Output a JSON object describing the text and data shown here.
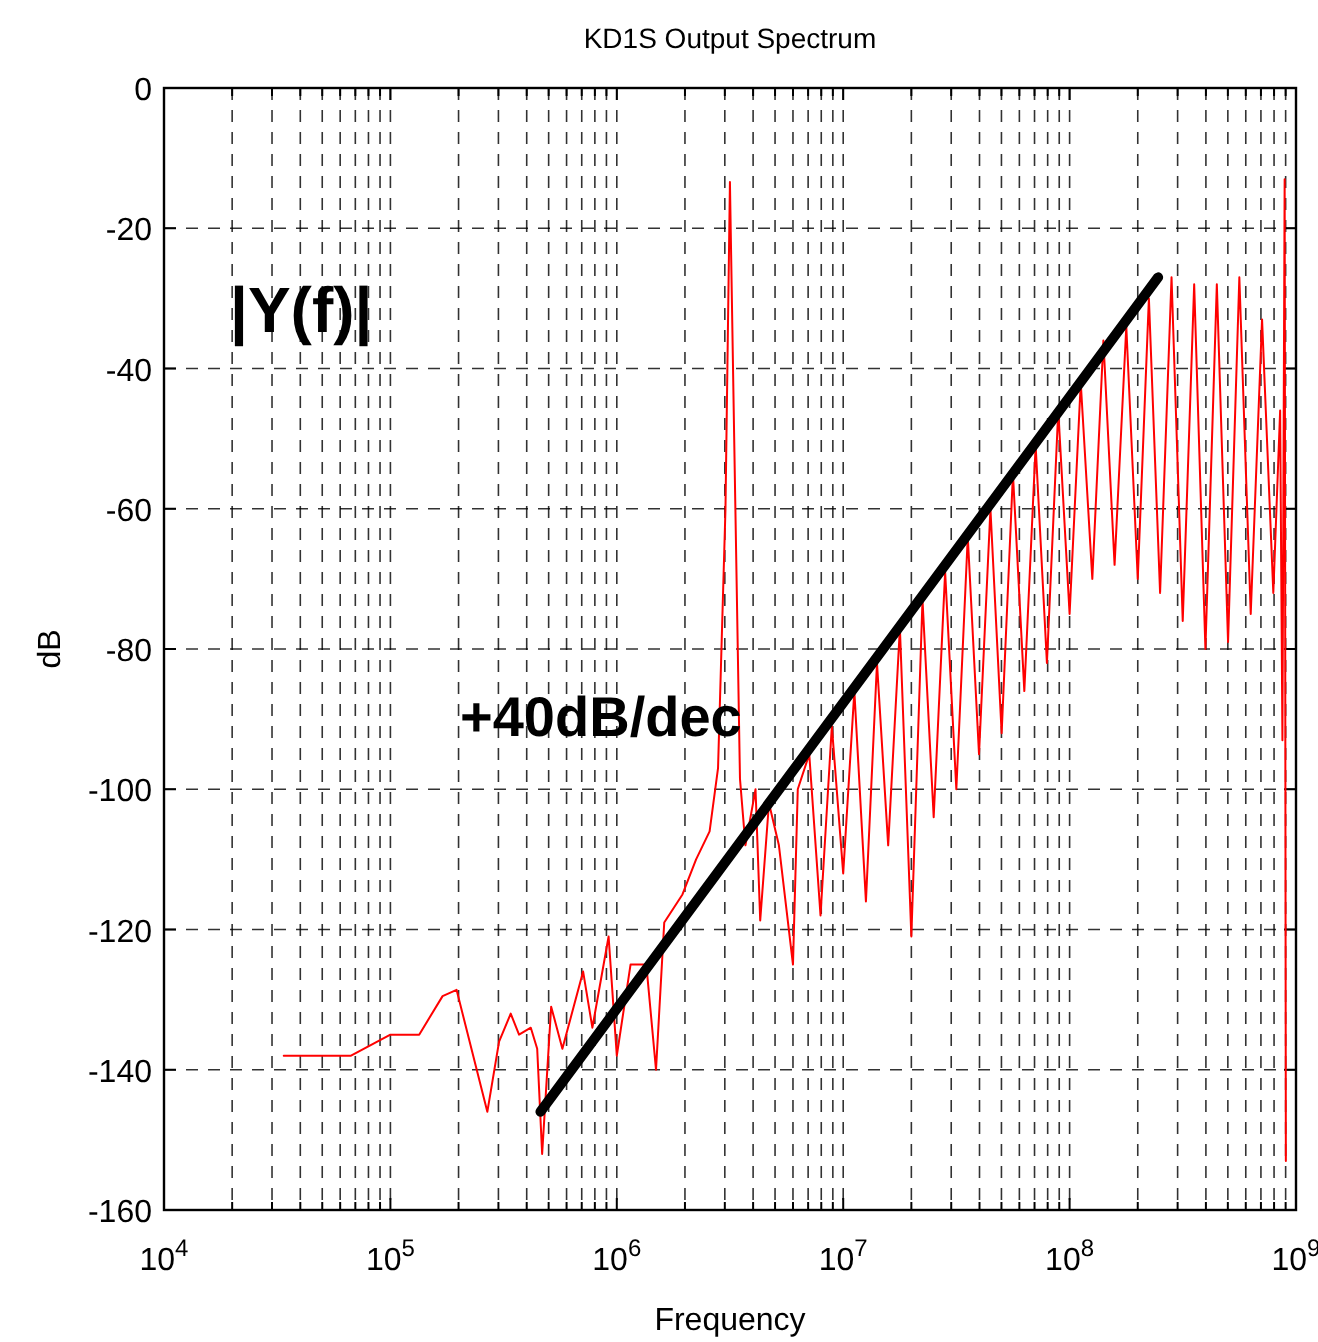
{
  "chart_data": {
    "type": "line",
    "title": "KD1S Output Spectrum",
    "xlabel": "Frequency",
    "ylabel": "dB",
    "log": "x",
    "grid": true,
    "xlim": [
      10000,
      1000000000
    ],
    "ylim": [
      -160,
      0
    ],
    "xticks": [
      {
        "value": 10000,
        "label": "10$^{4}$"
      },
      {
        "value": 20000,
        "label": null
      },
      {
        "value": 30000,
        "label": null
      },
      {
        "value": 40000,
        "label": null
      },
      {
        "value": 50000,
        "label": null
      },
      {
        "value": 60000,
        "label": null
      },
      {
        "value": 70000,
        "label": null
      },
      {
        "value": 80000,
        "label": null
      },
      {
        "value": 90000,
        "label": null
      },
      {
        "value": 100000,
        "label": "10$^{5}$"
      },
      {
        "value": 200000,
        "label": null
      },
      {
        "value": 300000,
        "label": null
      },
      {
        "value": 400000,
        "label": null
      },
      {
        "value": 500000,
        "label": null
      },
      {
        "value": 600000,
        "label": null
      },
      {
        "value": 700000,
        "label": null
      },
      {
        "value": 800000,
        "label": null
      },
      {
        "value": 900000,
        "label": null
      },
      {
        "value": 1000000,
        "label": "10$^{6}$"
      },
      {
        "value": 2000000,
        "label": null
      },
      {
        "value": 3000000,
        "label": null
      },
      {
        "value": 4000000,
        "label": null
      },
      {
        "value": 5000000,
        "label": null
      },
      {
        "value": 6000000,
        "label": null
      },
      {
        "value": 7000000,
        "label": null
      },
      {
        "value": 8000000,
        "label": null
      },
      {
        "value": 9000000,
        "label": null
      },
      {
        "value": 10000000,
        "label": "10$^{7}$"
      },
      {
        "value": 20000000,
        "label": null
      },
      {
        "value": 30000000,
        "label": null
      },
      {
        "value": 40000000,
        "label": null
      },
      {
        "value": 50000000,
        "label": null
      },
      {
        "value": 60000000,
        "label": null
      },
      {
        "value": 70000000,
        "label": null
      },
      {
        "value": 80000000,
        "label": null
      },
      {
        "value": 90000000,
        "label": null
      },
      {
        "value": 100000000,
        "label": "10$^{8}$"
      },
      {
        "value": 200000000,
        "label": null
      },
      {
        "value": 300000000,
        "label": null
      },
      {
        "value": 400000000,
        "label": null
      },
      {
        "value": 500000000,
        "label": null
      },
      {
        "value": 600000000,
        "label": null
      },
      {
        "value": 700000000,
        "label": null
      },
      {
        "value": 800000000,
        "label": null
      },
      {
        "value": 900000000,
        "label": null
      },
      {
        "value": 1000000000,
        "label": "10$^{9}$"
      }
    ],
    "yticks": [
      0,
      -20,
      -40,
      -60,
      -80,
      -100,
      -120,
      -140,
      -160
    ],
    "series": [
      {
        "color": "#ff0000",
        "x": [
          33800,
          67000,
          100000,
          134000,
          170000,
          196000,
          268000,
          302000,
          340000,
          370000,
          417000,
          445000,
          468000,
          513000,
          575000,
          710000,
          780000,
          920000,
          1000000,
          1150000,
          1350000,
          1490000,
          1620000,
          1950000,
          2240000,
          2570000,
          2800000,
          3020000,
          3160000,
          3300000,
          3500000,
          3700000,
          4100000,
          4300000,
          4700000,
          5200000,
          6000000,
          6300000,
          7080000,
          7940000,
          8910000,
          10000000,
          11200000,
          12600000,
          14100000,
          15800000,
          17800000,
          20000000,
          22400000,
          25100000,
          28200000,
          31600000,
          35500000,
          39800000,
          44700000,
          50100000,
          56200000,
          63100000,
          70800000,
          79400000,
          89100000,
          100000000,
          112000000,
          126000000,
          141000000,
          158000000,
          178000000,
          200000000,
          224000000,
          251000000,
          282000000,
          316000000,
          355000000,
          398000000,
          447000000,
          501000000,
          562000000,
          631000000,
          708000000,
          794000000,
          851000000,
          871000000,
          891000000,
          902000000
        ],
        "values": [
          -138,
          -138,
          -135,
          -135,
          -129.5,
          -128.6,
          -146,
          -136,
          -132,
          -135,
          -134,
          -137,
          -152,
          -131,
          -137,
          -126,
          -134,
          -121,
          -138,
          -125,
          -125,
          -140,
          -119,
          -115,
          -110,
          -106,
          -97,
          -60,
          -13.4,
          -50,
          -98.5,
          -108,
          -100,
          -118.7,
          -102,
          -108,
          -125,
          -100,
          -95,
          -118,
          -91,
          -112,
          -86,
          -116,
          -82,
          -108,
          -77,
          -121,
          -73,
          -104,
          -69,
          -100,
          -64,
          -95,
          -60,
          -92,
          -55,
          -86,
          -51,
          -82,
          -46,
          -75,
          -42,
          -70,
          -36,
          -68,
          -34,
          -70,
          -30,
          -72,
          -27,
          -76,
          -28,
          -80,
          -28,
          -79,
          -27,
          -75,
          -33,
          -72,
          -46,
          -93,
          -13,
          -153
        ]
      },
      {
        "color": "#000000",
        "x": [
          460000,
          246000000
        ],
        "values": [
          -146,
          -27
        ]
      }
    ],
    "annotations": [
      "|Y(f)|",
      "+40dB/dec"
    ]
  }
}
